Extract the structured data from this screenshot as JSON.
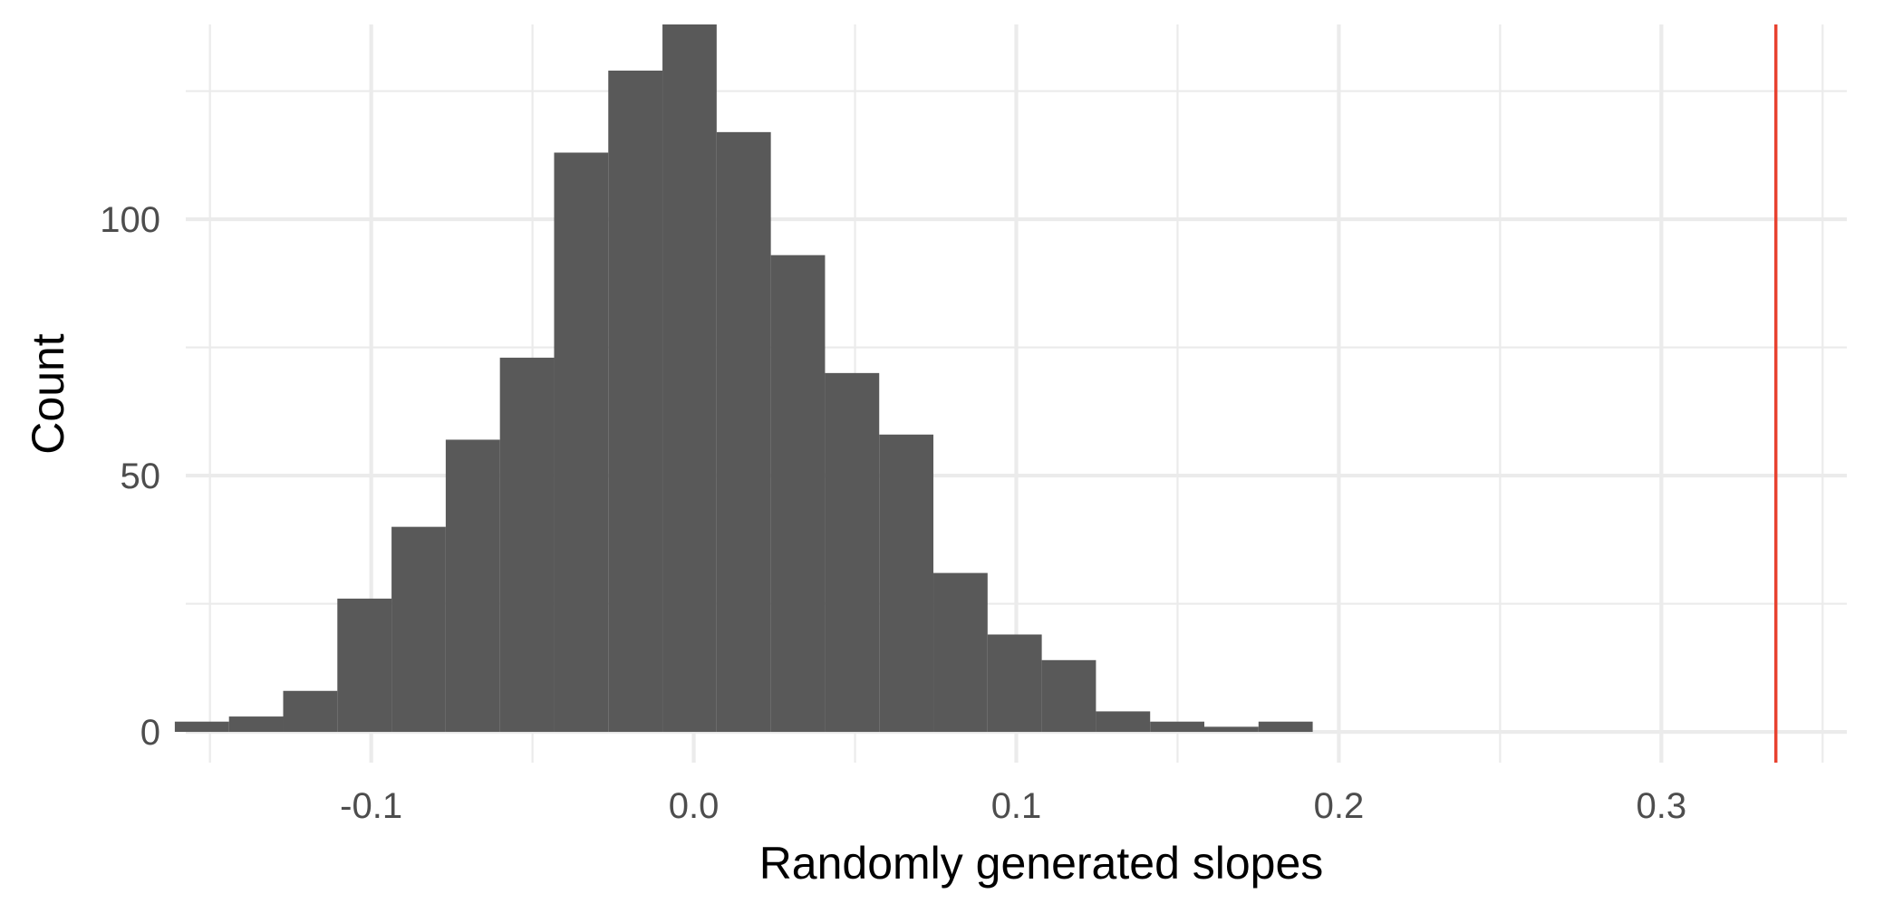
{
  "chart_data": {
    "type": "bar",
    "subtype": "histogram",
    "title": "",
    "xlabel": "Randomly generated slopes",
    "ylabel": "Count",
    "xlim": [
      -0.1575,
      0.3575
    ],
    "ylim": [
      -6,
      138
    ],
    "x_ticks": [
      {
        "value": -0.1,
        "label": "-0.1"
      },
      {
        "value": 0.0,
        "label": "0.0"
      },
      {
        "value": 0.1,
        "label": "0.1"
      },
      {
        "value": 0.2,
        "label": "0.2"
      },
      {
        "value": 0.3,
        "label": "0.3"
      }
    ],
    "x_minor_ticks": [
      -0.15,
      -0.05,
      0.05,
      0.15,
      0.25,
      0.35
    ],
    "y_ticks": [
      {
        "value": 0,
        "label": "0"
      },
      {
        "value": 50,
        "label": "50"
      },
      {
        "value": 100,
        "label": "100"
      }
    ],
    "y_minor_ticks": [
      25,
      75,
      125
    ],
    "bin_width": 0.0168,
    "bins": [
      {
        "x": -0.1525,
        "count": 2
      },
      {
        "x": -0.1357,
        "count": 3
      },
      {
        "x": -0.1189,
        "count": 8
      },
      {
        "x": -0.1021,
        "count": 26
      },
      {
        "x": -0.0853,
        "count": 40
      },
      {
        "x": -0.0685,
        "count": 57
      },
      {
        "x": -0.0517,
        "count": 73
      },
      {
        "x": -0.0349,
        "count": 113
      },
      {
        "x": -0.0181,
        "count": 129
      },
      {
        "x": -0.0013,
        "count": 138
      },
      {
        "x": 0.0155,
        "count": 117
      },
      {
        "x": 0.0323,
        "count": 93
      },
      {
        "x": 0.0491,
        "count": 70
      },
      {
        "x": 0.0659,
        "count": 58
      },
      {
        "x": 0.0827,
        "count": 31
      },
      {
        "x": 0.0995,
        "count": 19
      },
      {
        "x": 0.1163,
        "count": 14
      },
      {
        "x": 0.1331,
        "count": 4
      },
      {
        "x": 0.1499,
        "count": 2
      },
      {
        "x": 0.1667,
        "count": 1
      },
      {
        "x": 0.1835,
        "count": 2
      }
    ],
    "reference_line": {
      "x": 0.3355,
      "color": "#e8412f"
    },
    "bar_color": "#595959",
    "grid": true,
    "grid_color": "#ebebeb",
    "legend": "none"
  }
}
